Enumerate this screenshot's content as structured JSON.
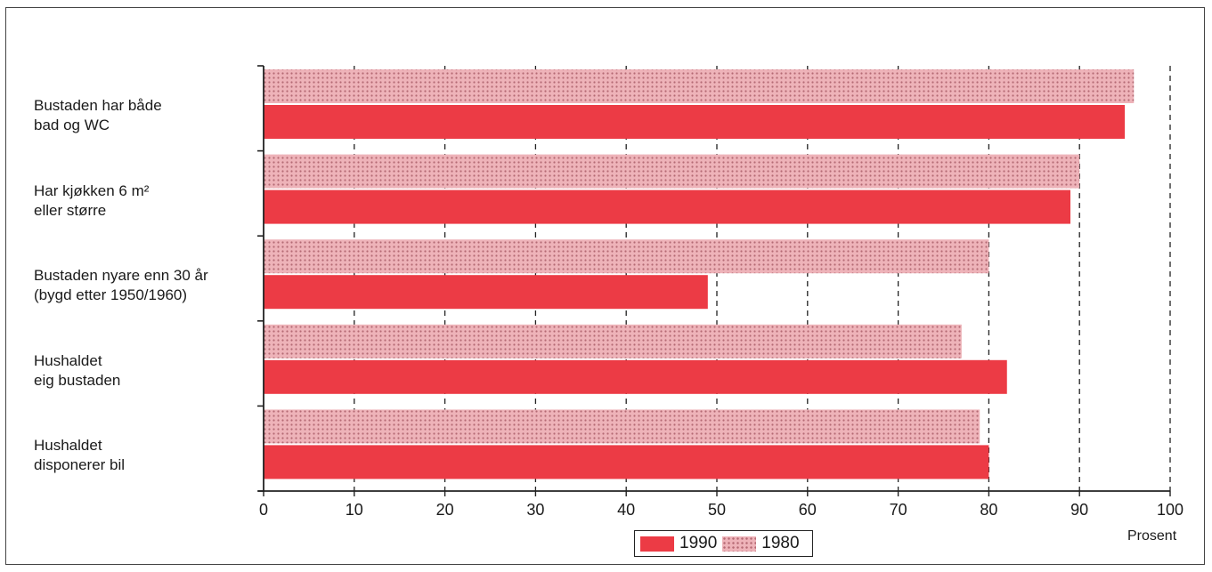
{
  "chart_data": {
    "type": "bar",
    "orientation": "horizontal",
    "categories": [
      [
        "Bustaden har både",
        "bad og WC"
      ],
      [
        "Har kjøkken 6 m²",
        "eller større"
      ],
      [
        "Bustaden nyare enn 30 år",
        "(bygd etter 1950/1960)"
      ],
      [
        "Hushaldet",
        "eig bustaden"
      ],
      [
        "Hushaldet",
        "disponerer bil"
      ]
    ],
    "series": [
      {
        "name": "1980",
        "values": [
          96,
          90,
          80,
          77,
          79
        ],
        "color": "#e8a4ac",
        "pattern": "dotted-screen"
      },
      {
        "name": "1990",
        "values": [
          95,
          89,
          49,
          82,
          80
        ],
        "color": "#ec3b45",
        "pattern": "solid"
      }
    ],
    "xlim": [
      0,
      100
    ],
    "xticks": [
      "0",
      "10",
      "20",
      "30",
      "40",
      "50",
      "60",
      "70",
      "80",
      "90",
      "100"
    ],
    "xlabel": "Prosent",
    "legend": {
      "position": "bottom-center",
      "entries": [
        "1990",
        "1980"
      ]
    },
    "grid": "vertical-dashed"
  },
  "colors": {
    "bar_1990": "#ec3b45",
    "bar_1980": "#e8a4ac",
    "axis": "#222222",
    "frame": "#444444"
  }
}
